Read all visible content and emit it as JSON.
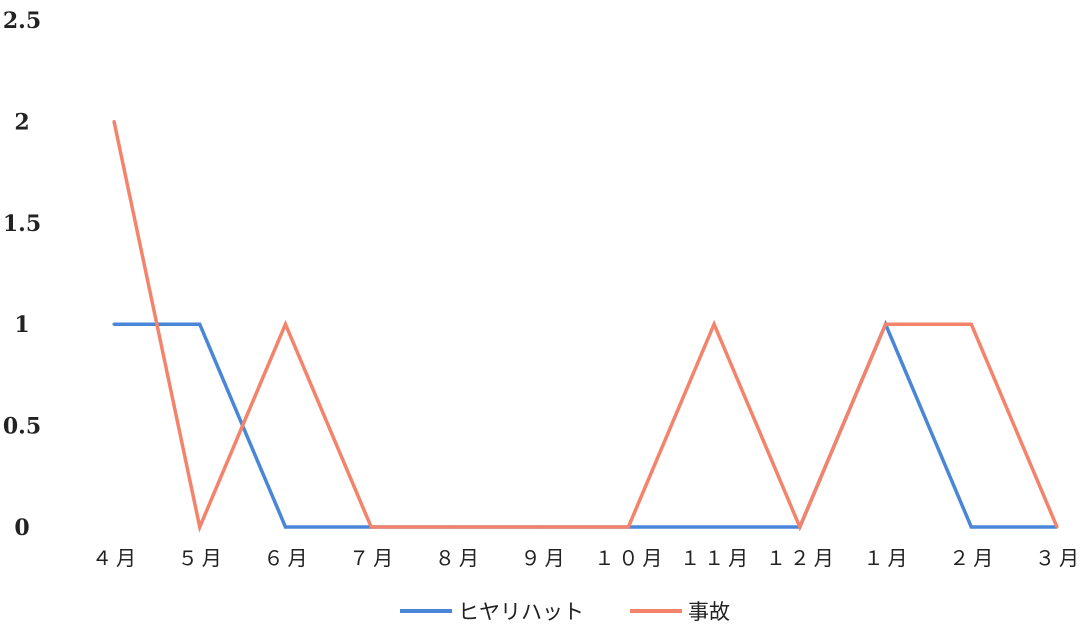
{
  "chart_data": {
    "type": "line",
    "title": "",
    "xlabel": "",
    "ylabel": "",
    "categories": [
      "４月",
      "５月",
      "６月",
      "７月",
      "８月",
      "９月",
      "１０月",
      "１１月",
      "１２月",
      "１月",
      "２月",
      "３月"
    ],
    "y_ticks": [
      "0",
      "0.5",
      "1",
      "1.5",
      "2",
      "2.5"
    ],
    "ylim": [
      0,
      2.5
    ],
    "grid": false,
    "legend_position": "bottom",
    "series": [
      {
        "name": "ヒヤリハット",
        "color": "#4a86d8",
        "values": [
          1,
          1,
          0,
          0,
          0,
          0,
          0,
          0,
          0,
          1,
          0,
          0
        ]
      },
      {
        "name": "事故",
        "color": "#f4836b",
        "values": [
          2,
          0,
          1,
          0,
          0,
          0,
          0,
          1,
          0,
          1,
          1,
          0
        ]
      }
    ]
  }
}
